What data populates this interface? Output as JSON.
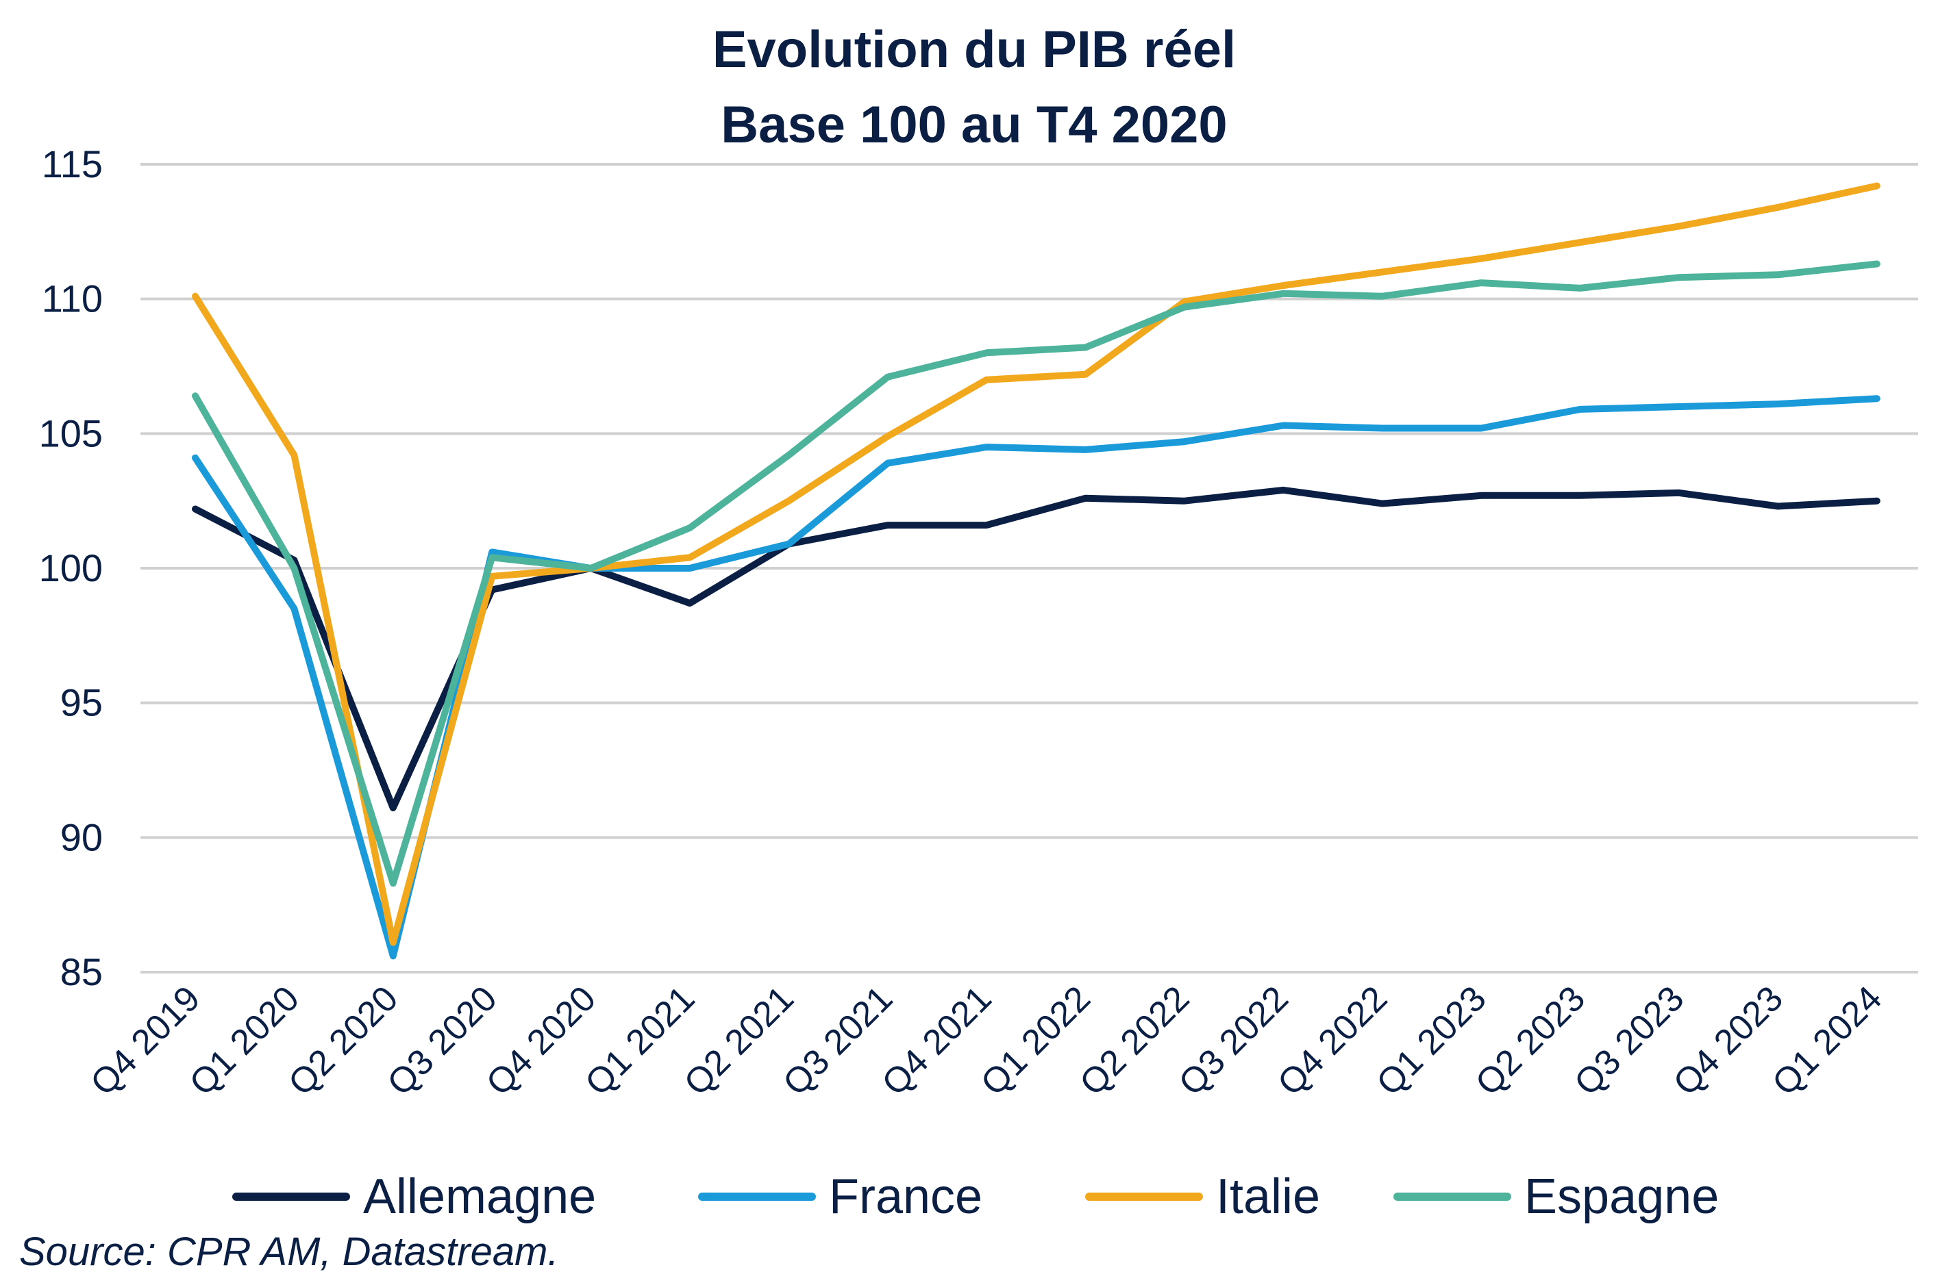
{
  "source": "Source: CPR AM, Datastream.",
  "chart_data": {
    "type": "line",
    "title": "Evolution du PIB réel",
    "subtitle": "Base 100 au T4 2020",
    "ylim": [
      85,
      115
    ],
    "yticks": [
      85,
      90,
      95,
      100,
      105,
      110,
      115
    ],
    "grid": true,
    "legend_position": "bottom",
    "categories": [
      "Q4 2019",
      "Q1 2020",
      "Q2 2020",
      "Q3 2020",
      "Q4 2020",
      "Q1 2021",
      "Q2 2021",
      "Q3 2021",
      "Q4 2021",
      "Q1 2022",
      "Q2 2022",
      "Q3 2022",
      "Q4 2022",
      "Q1 2023",
      "Q2 2023",
      "Q3 2023",
      "Q4 2023",
      "Q1 2024"
    ],
    "series": [
      {
        "name": "Allemagne",
        "color": "#0b1f44",
        "values": [
          102.2,
          100.3,
          91.1,
          99.2,
          100.0,
          98.7,
          100.9,
          101.6,
          101.6,
          102.6,
          102.5,
          102.9,
          102.4,
          102.7,
          102.7,
          102.8,
          102.3,
          102.5
        ]
      },
      {
        "name": "France",
        "color": "#1a9ad9",
        "values": [
          104.1,
          98.5,
          85.6,
          100.6,
          100.0,
          100.0,
          100.9,
          103.9,
          104.5,
          104.4,
          104.7,
          105.3,
          105.2,
          105.2,
          105.9,
          106.0,
          106.1,
          106.3
        ]
      },
      {
        "name": "Italie",
        "color": "#f2a81d",
        "values": [
          110.1,
          104.2,
          86.1,
          99.7,
          100.0,
          100.4,
          102.5,
          104.9,
          107.0,
          107.2,
          109.9,
          110.5,
          111.0,
          111.5,
          112.1,
          112.7,
          113.4,
          114.2
        ]
      },
      {
        "name": "Espagne",
        "color": "#4db39a",
        "values": [
          106.4,
          100.0,
          88.3,
          100.4,
          100.0,
          101.5,
          104.2,
          107.1,
          108.0,
          108.2,
          109.7,
          110.2,
          110.1,
          110.6,
          110.4,
          110.8,
          110.9,
          111.3
        ]
      }
    ]
  }
}
